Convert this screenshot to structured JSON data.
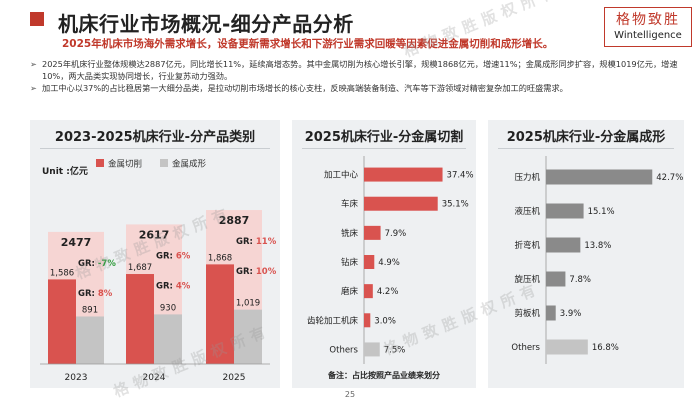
{
  "header": {
    "title": "机床行业市场概况-细分产品分析",
    "subtitle": "2025年机床市场海外需求增长，设备更新需求增长和下游行业需求回暖等因素促进金属切削和成形增长。",
    "logo_cn": "格物致胜",
    "logo_en": "Wintelligence"
  },
  "bullets": [
    "2025年机床行业整体规模达2887亿元，同比增长11%，延续高增态势。其中金属切削为核心增长引擎，规模1868亿元，增速11%；金属成形同步扩容，规模1019亿元，增速10%，两大品类实现协同增长，行业复苏动力强劲。",
    "加工中心以37%的占比稳居第一大细分品类，是拉动切削市场增长的核心支柱，反映高端装备制造、汽车等下游领域对精密复杂加工的旺盛需求。"
  ],
  "watermark": "格物致胜版权所有",
  "page_number": "25",
  "colors": {
    "red": "#d9534f",
    "gray": "#c4c4c4",
    "accent": "#c0392b",
    "green": "#2e9b3a"
  },
  "chart_data": [
    {
      "type": "bar",
      "title": "2023-2025机床行业-分产品类别",
      "unit_label": "Unit :亿元",
      "categories": [
        "2023",
        "2024",
        "2025"
      ],
      "series": [
        {
          "name": "金属切削",
          "values": [
            1586,
            1687,
            1868
          ]
        },
        {
          "name": "金属成形",
          "values": [
            891,
            930,
            1019
          ]
        }
      ],
      "value_labels": {
        "金属切削": [
          "1,586",
          "1,687",
          "1,868"
        ],
        "金属成形": [
          "891",
          "930",
          "1,019"
        ]
      },
      "totals": [
        "2477",
        "2617",
        "2887"
      ],
      "growth": {
        "金属切削": [
          "-7%",
          "6%",
          "11%"
        ],
        "金属成形": [
          "8%",
          "4%",
          "10%"
        ]
      },
      "growth_prefix": "GR: ",
      "ylim": [
        0,
        3000
      ],
      "legend": "top"
    },
    {
      "type": "bar",
      "orientation": "horizontal",
      "title": "2025机床行业-分金属切割",
      "categories": [
        "加工中心",
        "车床",
        "铣床",
        "钻床",
        "磨床",
        "齿轮加工机床",
        "Others"
      ],
      "values": [
        37.4,
        35.1,
        7.9,
        4.9,
        4.2,
        3.0,
        7.5
      ],
      "value_labels": [
        "37.4%",
        "35.1%",
        "7.9%",
        "4.9%",
        "4.2%",
        "3.0%",
        "7.5%"
      ],
      "note": "备注：占比按照产品业绩来划分",
      "xlim": [
        0,
        40
      ]
    },
    {
      "type": "bar",
      "orientation": "horizontal",
      "title": "2025机床行业-分金属成形",
      "categories": [
        "压力机",
        "液压机",
        "折弯机",
        "旋压机",
        "剪板机",
        "Others"
      ],
      "values": [
        42.7,
        15.1,
        13.8,
        7.8,
        3.9,
        16.8
      ],
      "value_labels": [
        "42.7%",
        "15.1%",
        "13.8%",
        "7.8%",
        "3.9%",
        "16.8%"
      ],
      "xlim": [
        0,
        45
      ]
    }
  ]
}
